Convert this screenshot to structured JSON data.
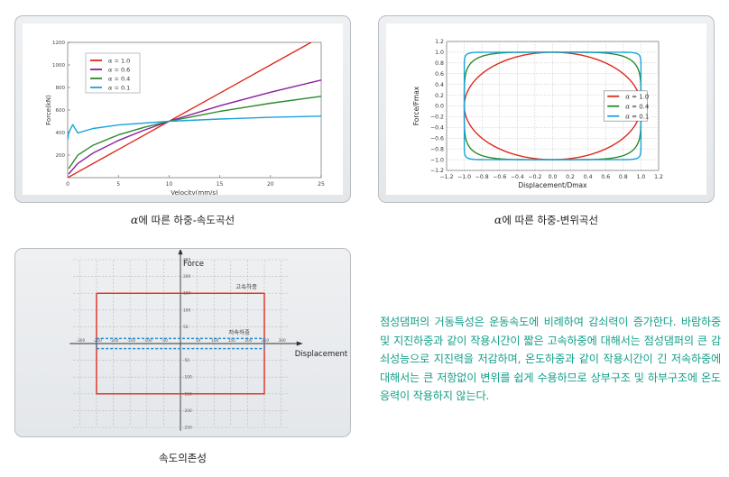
{
  "charts": [
    {
      "id": "force-velocity",
      "caption": {
        "alpha": "α",
        "text": "에 따른 하중-속도곡선"
      },
      "chart_data": {
        "type": "line",
        "xlabel": "Velocity(mm/s)",
        "ylabel": "Force(kN)",
        "xlim": [
          0,
          25
        ],
        "ylim": [
          0,
          1200
        ],
        "xticks": [
          0,
          5,
          10,
          15,
          20,
          25
        ],
        "yticks": [
          200,
          400,
          600,
          800,
          1000,
          1200
        ],
        "grid": false,
        "legend_position": "top-left",
        "series": [
          {
            "name": "α = 1.0",
            "color": "#dd2a1b",
            "x": [
              0,
              5,
              10,
              15,
              20,
              25
            ],
            "y": [
              0,
              250,
              500,
              750,
              1000,
              1250
            ]
          },
          {
            "name": "α = 0.6",
            "color": "#8a1f9e",
            "x": [
              0.1,
              1,
              2.5,
              5,
              7.5,
              10,
              15,
              20,
              25
            ],
            "y": [
              32,
              126,
              218,
              330,
              420,
              500,
              638,
              758,
              866
            ]
          },
          {
            "name": "α = 0.4",
            "color": "#2b8a2b",
            "x": [
              0.1,
              1,
              2.5,
              5,
              7.5,
              10,
              15,
              20,
              25
            ],
            "y": [
              80,
              199,
              287,
              379,
              446,
              500,
              588,
              660,
              722
            ]
          },
          {
            "name": "α = 0.1",
            "color": "#1aa3dc",
            "x": [
              0.02,
              0.1,
              0.5,
              1,
              2.5,
              5,
              10,
              15,
              20,
              25
            ],
            "y": [
              341,
              400,
              470,
              397,
              436,
              467,
              500,
              520,
              535,
              546
            ]
          }
        ]
      }
    },
    {
      "id": "force-displacement",
      "caption": {
        "alpha": "α",
        "text": "에 따른 하중-변위곡선"
      },
      "chart_data": {
        "type": "line",
        "xlabel": "Displacement/Dmax",
        "ylabel": "Force/Fmax",
        "xlim": [
          -1.2,
          1.2
        ],
        "ylim": [
          -1.2,
          1.2
        ],
        "xticks": [
          "-1.2",
          "-1.0",
          "-0.8",
          "-0.6",
          "-0.4",
          "-0.2",
          "0.0",
          "0.2",
          "0.4",
          "0.6",
          "0.8",
          "1.0",
          "1.2"
        ],
        "yticks": [
          "1.2",
          "1.0",
          "0.8",
          "0.6",
          "0.4",
          "0.2",
          "0.0",
          "-0.2",
          "-0.4",
          "-0.6",
          "-0.8",
          "-1.0",
          "-1.2"
        ],
        "grid": true,
        "legend_position": "center-right",
        "series": [
          {
            "name": "α = 1.0",
            "color": "#dd2a1b",
            "alpha": 1.0
          },
          {
            "name": "α = 0.4",
            "color": "#2b8a2b",
            "alpha": 0.4
          },
          {
            "name": "α = 0.1",
            "color": "#1aa3dc",
            "alpha": 0.1
          }
        ]
      }
    },
    {
      "id": "velocity-dependence",
      "caption": {
        "text": "속도의존성"
      },
      "chart_data": {
        "type": "line",
        "xlabel": "Displacement",
        "ylabel": "Force",
        "xlim": [
          -330,
          330
        ],
        "ylim": [
          -260,
          260
        ],
        "xticks": [
          -300,
          -250,
          -200,
          -150,
          -100,
          -50,
          50,
          100,
          150,
          200,
          250,
          300
        ],
        "yticks": [
          250,
          200,
          150,
          100,
          50,
          -50,
          -100,
          -150,
          -200,
          -250
        ],
        "grid": true,
        "series": [
          {
            "name": "고속하중",
            "color": "#dd3a2a",
            "style": "solid",
            "x": [
              -250,
              250,
              250,
              -250,
              -250
            ],
            "y": [
              150,
              150,
              -150,
              -150,
              150
            ]
          },
          {
            "name": "저속하중",
            "color": "#2a8fd0",
            "style": "dashed",
            "x": [
              -250,
              250,
              250,
              -250,
              -250
            ],
            "y": [
              15,
              15,
              -15,
              -15,
              15
            ]
          }
        ]
      }
    }
  ],
  "paragraph": "점성댐퍼의 거동특성은 운동속도에 비례하여 감쇠력이 증가한다. 바람하중 및 지진하중과 같이 작용시간이 짧은 고속하중에 대해서는 점성댐퍼의 큰 감쇠성능으로 지진력을 저감하며, 온도하중과 같이 작용시간이 긴 저속하중에 대해서는 큰 저항없이 변위를 쉽게 수용하므로 상부구조 및 하부구조에 온도응력이 작용하지 않는다."
}
